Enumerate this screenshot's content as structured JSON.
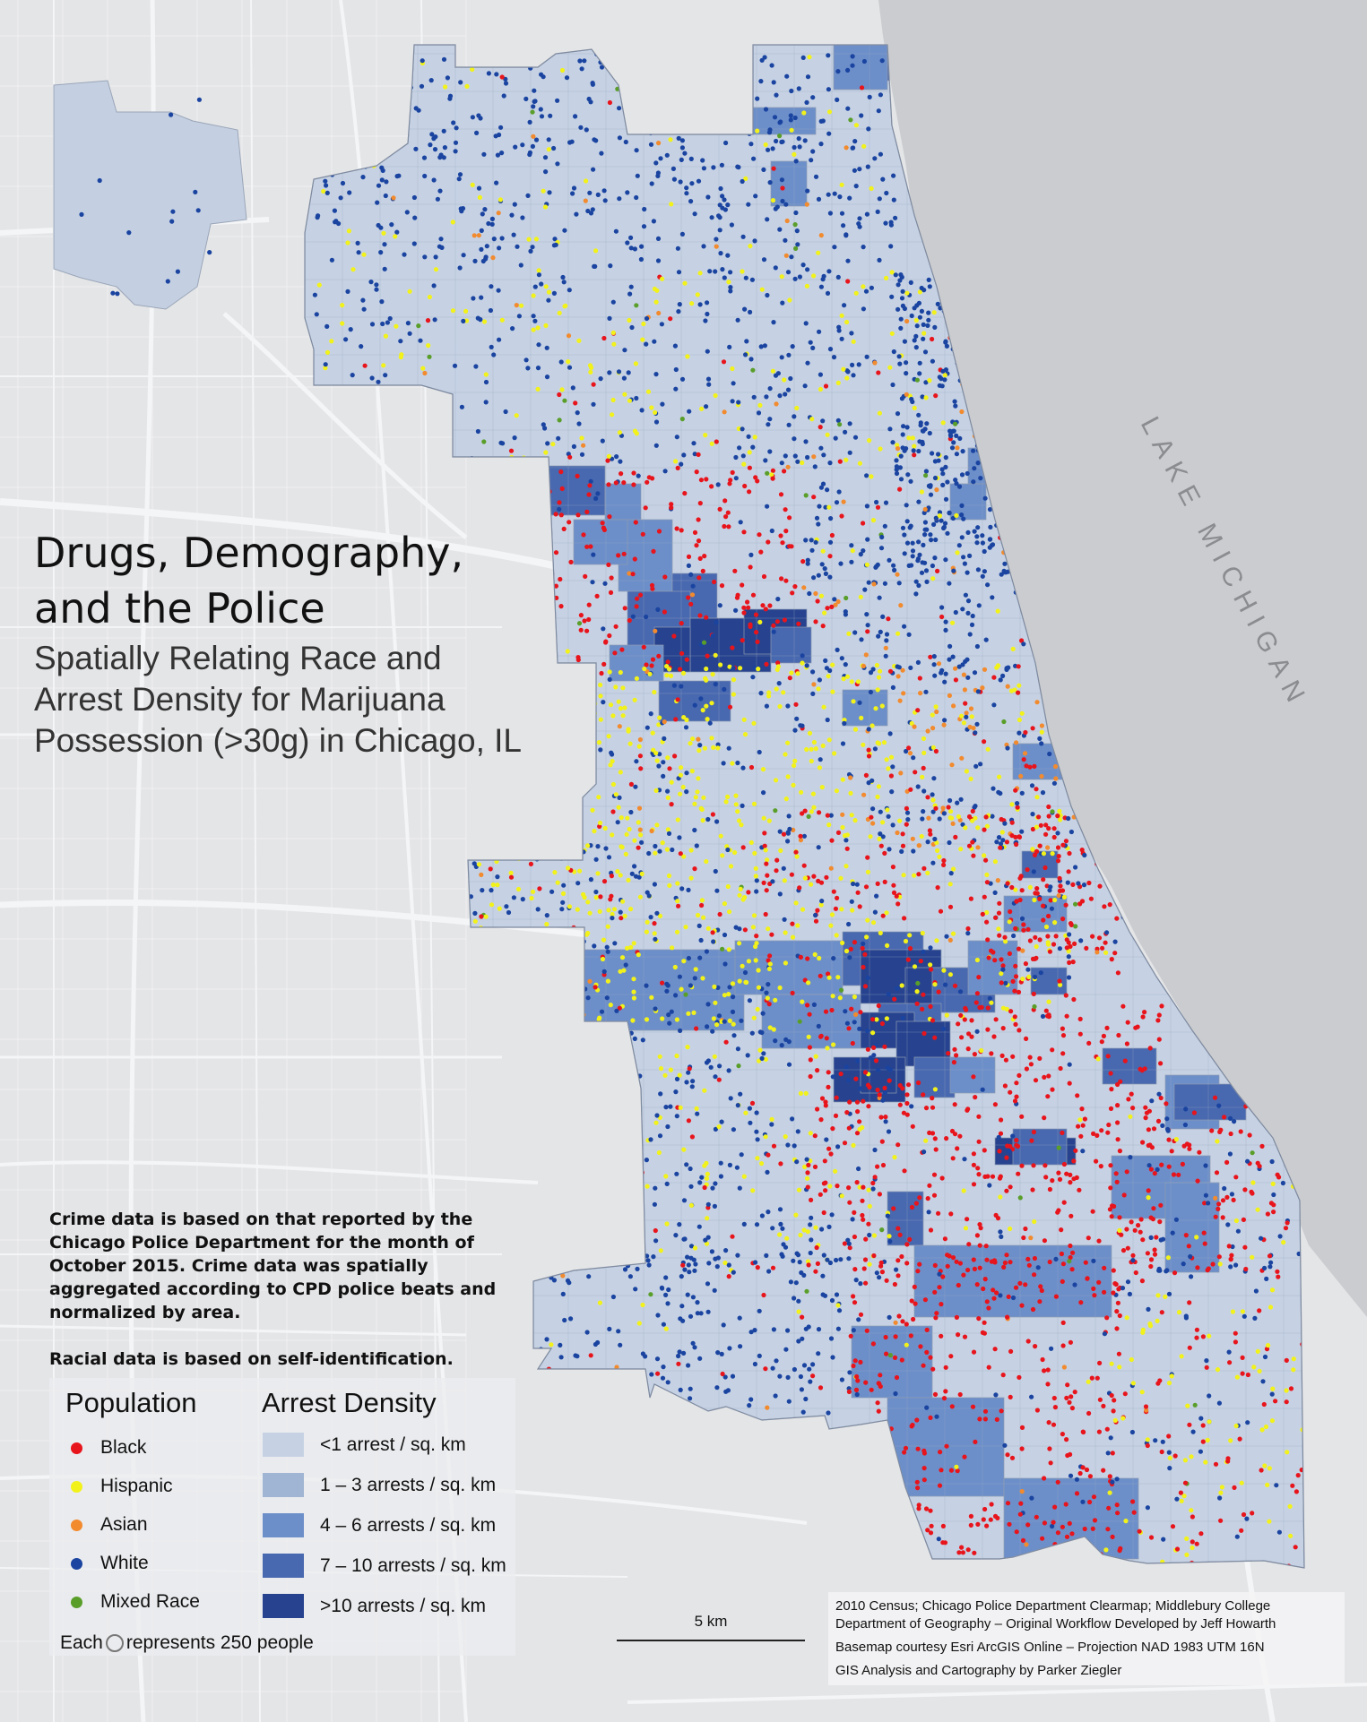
{
  "title": "Drugs, Demography,\nand the Police",
  "subtitle": "Spatially Relating Race and\nArrest Density for Marijuana\nPossession (>30g) in Chicago, IL",
  "lake_label": "LAKE MICHIGAN",
  "note": "Crime data is based on that reported by the Chicago Police Department for the month of October 2015. Crime data was spatially aggregated according to CPD police beats and normalized by area.",
  "note2": "Racial data is based on self-identification.",
  "legend": {
    "population_title": "Population",
    "population": [
      {
        "label": "Black",
        "color": "#e8141c"
      },
      {
        "label": "Hispanic",
        "color": "#f2f21a"
      },
      {
        "label": "Asian",
        "color": "#f28a2e"
      },
      {
        "label": "White",
        "color": "#1a44a0"
      },
      {
        "label": "Mixed Race",
        "color": "#5a9e2a"
      }
    ],
    "density_title": "Arrest Density",
    "density": [
      {
        "label": "<1 arrest / sq. km",
        "color": "#c6d2e4"
      },
      {
        "label": "1 – 3 arrests / sq. km",
        "color": "#9fb5d3"
      },
      {
        "label": "4 – 6 arrests / sq. km",
        "color": "#6c8fca"
      },
      {
        "label": "7 – 10 arrests / sq. km",
        "color": "#4868b0"
      },
      {
        "label": ">10 arrests / sq. km",
        "color": "#27438f"
      }
    ],
    "each_prefix": "Each",
    "each_suffix": "represents 250 people"
  },
  "scale": "5 km",
  "credits": [
    "2010 Census; Chicago Police Department Clearmap; Middlebury College",
    "Department of Geography – Original Workflow Developed by Jeff Howarth",
    "Basemap courtesy Esri ArcGIS Online – Projection NAD 1983 UTM 16N",
    "GIS Analysis and Cartography by Parker Ziegler"
  ]
}
